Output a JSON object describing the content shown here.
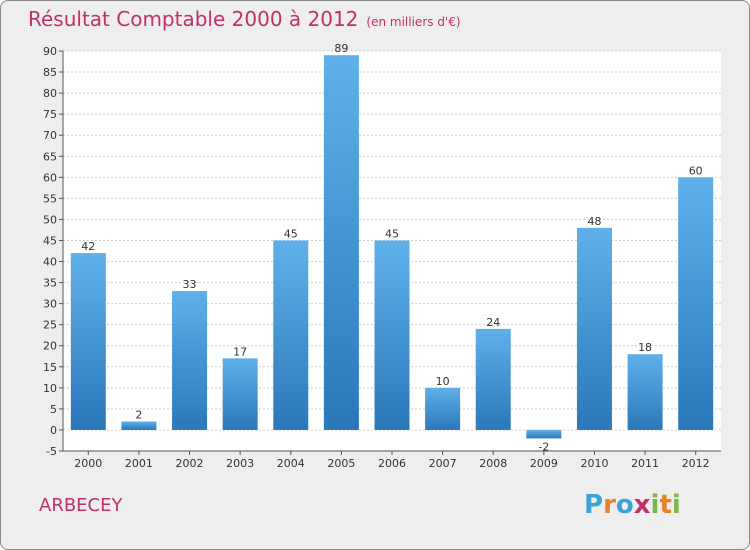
{
  "header": {
    "title": "Résultat Comptable 2000 à 2012",
    "subtitle": "(en milliers d'€)"
  },
  "footer": {
    "commune": "ARBECEY",
    "logo_letters": [
      "P",
      "r",
      "o",
      "x",
      "i",
      "t",
      "i"
    ],
    "logo_colors": [
      "#3aa3d9",
      "#e8822a",
      "#3aa3d9",
      "#c0306a",
      "#7ab648",
      "#e8822a",
      "#7ab648"
    ]
  },
  "colors": {
    "accent": "#c0306a",
    "bar_top": "#5fb0ea",
    "bar_bottom": "#2a78ba",
    "grid": "#cfcfcf"
  },
  "chart_data": {
    "type": "bar",
    "title": "Résultat Comptable 2000 à 2012",
    "ylabel": "en milliers d'€",
    "xlabel": "",
    "categories": [
      "2000",
      "2001",
      "2002",
      "2003",
      "2004",
      "2005",
      "2006",
      "2007",
      "2008",
      "2009",
      "2010",
      "2011",
      "2012"
    ],
    "values": [
      42,
      2,
      33,
      17,
      45,
      89,
      45,
      10,
      24,
      -2,
      48,
      18,
      60
    ],
    "ylim": [
      -5,
      90
    ],
    "yticks": [
      -5,
      0,
      5,
      10,
      15,
      20,
      25,
      30,
      35,
      40,
      45,
      50,
      55,
      60,
      65,
      70,
      75,
      80,
      85,
      90
    ],
    "grid": true
  }
}
